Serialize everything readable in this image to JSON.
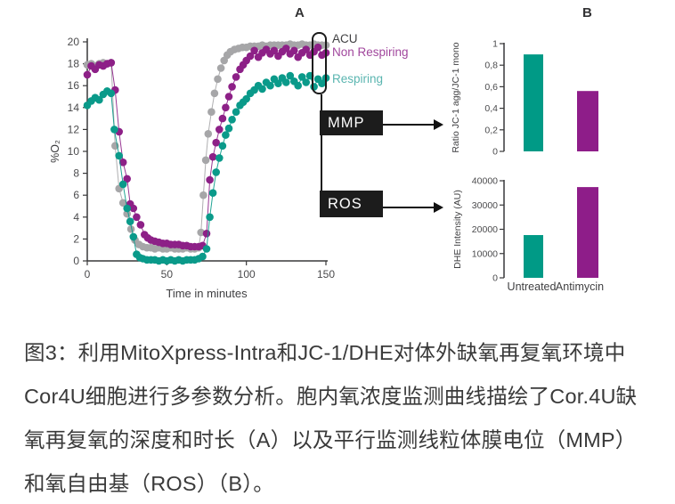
{
  "figure": {
    "panel_a_label": "A",
    "panel_b_label": "B",
    "legend": [
      {
        "label": "ACU",
        "color": "#3f3f41"
      },
      {
        "label": "Non Respiring",
        "color": "#a1479d"
      },
      {
        "label": "Respiring",
        "color": "#5ab5b0"
      }
    ],
    "mmp_label": "MMP",
    "ros_label": "ROS"
  },
  "chart_data": [
    {
      "id": "intracellular_oxygen_timecourse",
      "type": "scatter",
      "panel": "A",
      "xlabel": "Time in minutes",
      "ylabel": "%O₂",
      "xlim": [
        0,
        150
      ],
      "xticks": [
        0,
        50,
        100,
        150
      ],
      "ylim": [
        0,
        20
      ],
      "yticks": [
        0,
        2,
        4,
        6,
        8,
        10,
        12,
        14,
        16,
        18,
        20
      ],
      "grid": false,
      "legend_position": "right-outside",
      "series": [
        {
          "name": "ACU",
          "color": "#a6a6a8",
          "points": [
            [
              0,
              17.9
            ],
            [
              2.5,
              18.0
            ],
            [
              5,
              17.8
            ],
            [
              7.5,
              18.0
            ],
            [
              10,
              18.1
            ],
            [
              12.5,
              18.0
            ],
            [
              15,
              18.1
            ],
            [
              17.5,
              10.5
            ],
            [
              20,
              6.6
            ],
            [
              22.5,
              5.3
            ],
            [
              25,
              4.3
            ],
            [
              27.5,
              2.9
            ],
            [
              30,
              1.9
            ],
            [
              32.5,
              1.5
            ],
            [
              35,
              1.3
            ],
            [
              37.5,
              1.2
            ],
            [
              40,
              1.2
            ],
            [
              42.5,
              1.1
            ],
            [
              45,
              1.2
            ],
            [
              47.5,
              1.1
            ],
            [
              50,
              1.1
            ],
            [
              52.5,
              1.2
            ],
            [
              55,
              1.1
            ],
            [
              57.5,
              1.1
            ],
            [
              60,
              1.1
            ],
            [
              62.5,
              1.2
            ],
            [
              65,
              1.1
            ],
            [
              67.5,
              1.1
            ],
            [
              70,
              1.2
            ],
            [
              71.5,
              2.6
            ],
            [
              73,
              6.0
            ],
            [
              74.5,
              9.2
            ],
            [
              76,
              11.6
            ],
            [
              78,
              13.6
            ],
            [
              80,
              15.3
            ],
            [
              82,
              16.6
            ],
            [
              84,
              17.6
            ],
            [
              86,
              18.3
            ],
            [
              88,
              18.8
            ],
            [
              90,
              19.1
            ],
            [
              92.5,
              19.3
            ],
            [
              95,
              19.4
            ],
            [
              97.5,
              19.5
            ],
            [
              100,
              19.5
            ],
            [
              102.5,
              19.6
            ],
            [
              105,
              19.6
            ],
            [
              107.5,
              19.6
            ],
            [
              110,
              19.7
            ],
            [
              112.5,
              19.6
            ],
            [
              115,
              19.7
            ],
            [
              117.5,
              19.7
            ],
            [
              120,
              19.7
            ],
            [
              122.5,
              19.7
            ],
            [
              125,
              19.7
            ],
            [
              127.5,
              19.8
            ],
            [
              130,
              19.7
            ],
            [
              132.5,
              19.7
            ],
            [
              135,
              19.8
            ],
            [
              137.5,
              19.7
            ],
            [
              140,
              19.7
            ],
            [
              142.5,
              19.8
            ],
            [
              145,
              19.7
            ],
            [
              147.5,
              19.7
            ],
            [
              150,
              19.7
            ]
          ]
        },
        {
          "name": "Non Respiring",
          "color": "#8d2087",
          "points": [
            [
              0,
              17.0
            ],
            [
              2.5,
              17.8
            ],
            [
              5,
              17.5
            ],
            [
              7.5,
              17.9
            ],
            [
              10,
              17.8
            ],
            [
              12.5,
              18.0
            ],
            [
              15,
              18.1
            ],
            [
              17.5,
              15.6
            ],
            [
              20,
              11.8
            ],
            [
              22.5,
              9.0
            ],
            [
              25,
              7.5
            ],
            [
              27,
              5.2
            ],
            [
              29,
              4.8
            ],
            [
              31,
              4.0
            ],
            [
              33.5,
              3.3
            ],
            [
              36,
              2.4
            ],
            [
              38,
              2.1
            ],
            [
              40,
              1.9
            ],
            [
              42.5,
              1.8
            ],
            [
              45,
              1.7
            ],
            [
              47.5,
              1.6
            ],
            [
              50,
              1.6
            ],
            [
              52.5,
              1.5
            ],
            [
              55,
              1.5
            ],
            [
              57.5,
              1.5
            ],
            [
              60,
              1.4
            ],
            [
              62.5,
              1.4
            ],
            [
              65,
              1.3
            ],
            [
              67.5,
              1.3
            ],
            [
              70,
              1.3
            ],
            [
              72.5,
              1.4
            ],
            [
              75,
              2.5
            ],
            [
              77,
              7.4
            ],
            [
              79,
              9.5
            ],
            [
              81,
              10.8
            ],
            [
              83,
              12.0
            ],
            [
              85,
              13.0
            ],
            [
              87,
              14.0
            ],
            [
              89,
              15.0
            ],
            [
              91,
              15.9
            ],
            [
              93.5,
              16.8
            ],
            [
              96,
              17.5
            ],
            [
              98,
              17.9
            ],
            [
              100,
              18.3
            ],
            [
              102.5,
              18.7
            ],
            [
              105,
              19.2
            ],
            [
              107.5,
              18.6
            ],
            [
              110,
              19.0
            ],
            [
              112.5,
              19.3
            ],
            [
              115,
              18.9
            ],
            [
              117.5,
              19.2
            ],
            [
              120,
              18.7
            ],
            [
              122.5,
              19.1
            ],
            [
              125,
              19.4
            ],
            [
              127.5,
              18.9
            ],
            [
              130,
              19.2
            ],
            [
              132.5,
              18.6
            ],
            [
              135,
              19.0
            ],
            [
              137.5,
              19.3
            ],
            [
              140,
              18.8
            ],
            [
              142.5,
              19.1
            ],
            [
              145,
              19.5
            ],
            [
              147.5,
              18.8
            ],
            [
              150,
              19.0
            ]
          ]
        },
        {
          "name": "Respiring",
          "color": "#0a9a8a",
          "points": [
            [
              0,
              14.2
            ],
            [
              2.5,
              14.6
            ],
            [
              5,
              14.9
            ],
            [
              7.5,
              14.7
            ],
            [
              10,
              15.2
            ],
            [
              12.5,
              15.5
            ],
            [
              15,
              15.3
            ],
            [
              17,
              12.0
            ],
            [
              20,
              9.6
            ],
            [
              22.5,
              7.0
            ],
            [
              25,
              4.8
            ],
            [
              27,
              3.6
            ],
            [
              29,
              2.2
            ],
            [
              31,
              0.6
            ],
            [
              33,
              0.3
            ],
            [
              35,
              0.2
            ],
            [
              37.5,
              0.1
            ],
            [
              40,
              0.1
            ],
            [
              42.5,
              0.1
            ],
            [
              45,
              0.0
            ],
            [
              47.5,
              0.1
            ],
            [
              50,
              0.0
            ],
            [
              52.5,
              0.1
            ],
            [
              55,
              0.0
            ],
            [
              57.5,
              0.1
            ],
            [
              60,
              0.0
            ],
            [
              62.5,
              0.1
            ],
            [
              65,
              0.1
            ],
            [
              67.5,
              0.1
            ],
            [
              70,
              0.2
            ],
            [
              72.5,
              0.4
            ],
            [
              75,
              1.1
            ],
            [
              77,
              4.0
            ],
            [
              79,
              6.2
            ],
            [
              81,
              8.1
            ],
            [
              83,
              9.4
            ],
            [
              85,
              10.5
            ],
            [
              87,
              11.5
            ],
            [
              89,
              12.1
            ],
            [
              91,
              12.9
            ],
            [
              93.5,
              13.6
            ],
            [
              96,
              14.2
            ],
            [
              98,
              14.5
            ],
            [
              100,
              14.8
            ],
            [
              102.5,
              15.3
            ],
            [
              105,
              15.6
            ],
            [
              107.5,
              16.0
            ],
            [
              110,
              15.7
            ],
            [
              112.5,
              16.3
            ],
            [
              115,
              16.0
            ],
            [
              117.5,
              16.6
            ],
            [
              120,
              16.2
            ],
            [
              122.5,
              16.7
            ],
            [
              125,
              16.3
            ],
            [
              127.5,
              16.9
            ],
            [
              130,
              16.4
            ],
            [
              132.5,
              16.0
            ],
            [
              135,
              16.8
            ],
            [
              137.5,
              16.3
            ],
            [
              140,
              16.9
            ],
            [
              142.5,
              15.9
            ],
            [
              145,
              16.6
            ],
            [
              147.5,
              16.2
            ],
            [
              150,
              16.7
            ]
          ]
        }
      ]
    },
    {
      "id": "mmp_jc1_ratio",
      "type": "bar",
      "panel": "B",
      "ylabel": "Ratio JC-1 agg/JC-1 mono",
      "categories": [
        "Untreated",
        "Antimycin"
      ],
      "values": [
        0.9,
        0.56
      ],
      "colors": [
        "#009a86",
        "#8e1d89"
      ],
      "ylim": [
        0,
        1
      ],
      "yticks": [
        0,
        0.2,
        0.4,
        0.6,
        0.8,
        1
      ],
      "ytick_labels": [
        "0",
        "0,2",
        "0,4",
        "0,6",
        "0,8",
        "1"
      ],
      "show_category_labels": false
    },
    {
      "id": "ros_dhe_intensity",
      "type": "bar",
      "panel": "B",
      "ylabel": "DHE Intensity (AU)",
      "categories": [
        "Untreated",
        "Antimycin"
      ],
      "values": [
        17600,
        37400
      ],
      "colors": [
        "#009a86",
        "#8e1d89"
      ],
      "ylim": [
        0,
        40000
      ],
      "yticks": [
        0,
        10000,
        20000,
        30000,
        40000
      ],
      "ytick_labels": [
        "0",
        "10000",
        "20000",
        "30000",
        "40000"
      ],
      "show_category_labels": true
    }
  ],
  "caption": {
    "lines": [
      "图3：利用MitoXpress-Intra和JC-1/DHE对体外缺氧再复氧环境中",
      "Cor4U细胞进行多参数分析。胞内氧浓度监测曲线描绘了Cor.4U缺",
      "氧再复氧的深度和时长（A）以及平行监测线粒体膜电位（MMP）",
      "和氧自由基（ROS）（B）。"
    ]
  }
}
